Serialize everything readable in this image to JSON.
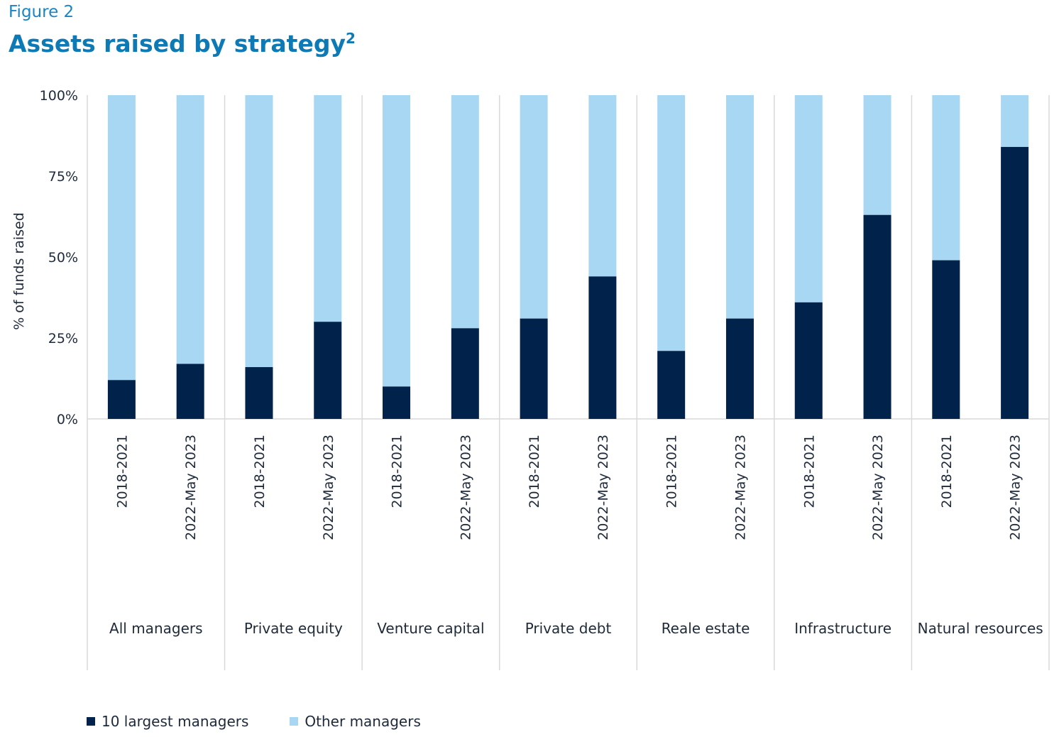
{
  "figure_label": "Figure 2",
  "title": "Assets raised by strategy",
  "title_superscript": "2",
  "colors": {
    "largest": "#01224a",
    "other": "#a8d7f4",
    "title": "#0e7ab5",
    "grid": "#d9d9d9"
  },
  "chart_data": {
    "type": "bar",
    "stacked": true,
    "ylabel": "% of funds raised",
    "ylim": [
      0,
      100
    ],
    "yticks": [
      "0%",
      "25%",
      "50%",
      "75%",
      "100%"
    ],
    "groups": [
      {
        "name": "All managers",
        "categories": [
          "2018-2021",
          "2022-May 2023"
        ]
      },
      {
        "name": "Private equity",
        "categories": [
          "2018-2021",
          "2022-May 2023"
        ]
      },
      {
        "name": "Venture capital",
        "categories": [
          "2018-2021",
          "2022-May 2023"
        ]
      },
      {
        "name": "Private debt",
        "categories": [
          "2018-2021",
          "2022-May 2023"
        ]
      },
      {
        "name": "Reale estate",
        "categories": [
          "2018-2021",
          "2022-May 2023"
        ]
      },
      {
        "name": "Infrastructure",
        "categories": [
          "2018-2021",
          "2022-May 2023"
        ]
      },
      {
        "name": "Natural resources",
        "categories": [
          "2018-2021",
          "2022-May 2023"
        ]
      }
    ],
    "series": [
      {
        "name": "10 largest managers",
        "values": [
          12,
          17,
          16,
          30,
          10,
          28,
          31,
          44,
          21,
          31,
          36,
          63,
          49,
          84
        ]
      },
      {
        "name": "Other managers",
        "values": [
          88,
          83,
          84,
          70,
          90,
          72,
          69,
          56,
          79,
          69,
          64,
          37,
          51,
          16
        ]
      }
    ],
    "legend_position": "bottom-left",
    "grid": false
  }
}
